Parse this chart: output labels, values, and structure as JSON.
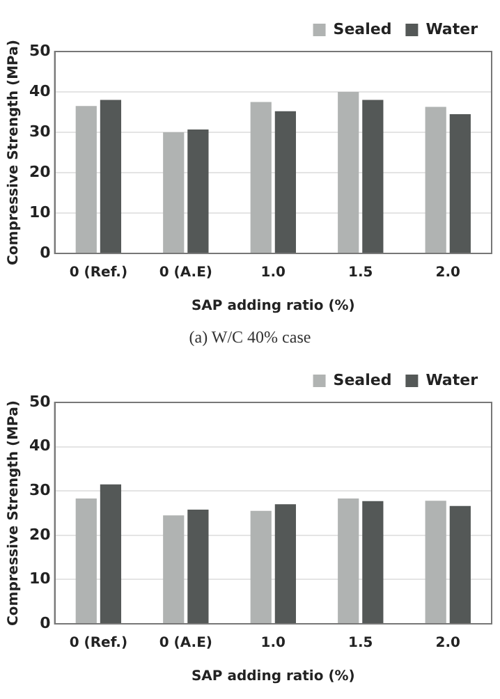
{
  "chart_data": [
    {
      "type": "bar",
      "xlabel": "SAP adding ratio (%)",
      "ylabel": "Compressive Strength (MPa)",
      "categories": [
        "0 (Ref.)",
        "0 (A.E)",
        "1.0",
        "1.5",
        "2.0"
      ],
      "series": [
        {
          "name": "Sealed",
          "color": "#b0b3b2",
          "values": [
            36.5,
            30,
            37.5,
            40,
            36.3
          ]
        },
        {
          "name": "Water",
          "color": "#545857",
          "values": [
            38,
            30.7,
            35.2,
            38,
            34.5
          ]
        }
      ],
      "ylim": [
        0,
        50
      ],
      "yticks": [
        0,
        10,
        20,
        30,
        40,
        50
      ],
      "grid": "y",
      "legend": "top right",
      "annotations": [
        "(a) W/C 40% case"
      ]
    },
    {
      "type": "bar",
      "xlabel": "SAP adding ratio (%)",
      "ylabel": "Compressive Strength (MPa)",
      "categories": [
        "0 (Ref.)",
        "0 (A.E)",
        "1.0",
        "1.5",
        "2.0"
      ],
      "series": [
        {
          "name": "Sealed",
          "color": "#b0b3b2",
          "values": [
            28.3,
            24.5,
            25.5,
            28.3,
            27.8
          ]
        },
        {
          "name": "Water",
          "color": "#545857",
          "values": [
            31.5,
            25.8,
            27,
            27.7,
            26.6
          ]
        }
      ],
      "ylim": [
        0,
        50
      ],
      "yticks": [
        0,
        10,
        20,
        30,
        40,
        50
      ],
      "grid": "y",
      "legend": "top right"
    }
  ]
}
